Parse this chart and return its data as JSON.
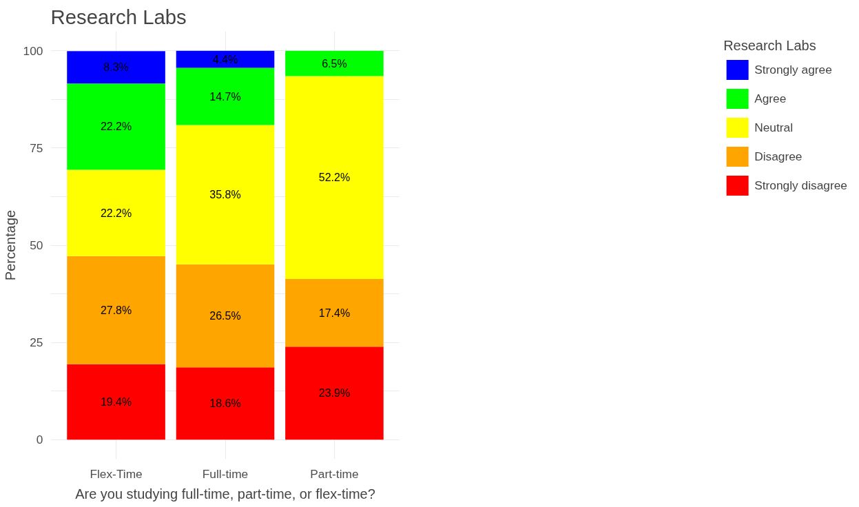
{
  "chart_data": {
    "type": "bar",
    "title": "Research Labs",
    "xlabel": "Are you studying full-time, part-time, or flex-time?",
    "ylabel": "Percentage",
    "legend_title": "Research Labs",
    "categories": [
      "Flex-Time",
      "Full-time",
      "Part-time"
    ],
    "stacked": true,
    "series": [
      {
        "name": "Strongly disagree",
        "color": "#ff0000",
        "values": [
          19.4,
          18.6,
          23.9
        ],
        "value_labels": [
          "19.4%",
          "18.6%",
          "23.9%"
        ]
      },
      {
        "name": "Disagree",
        "color": "#ffa500",
        "values": [
          27.8,
          26.5,
          17.4
        ],
        "value_labels": [
          "27.8%",
          "26.5%",
          "17.4%"
        ]
      },
      {
        "name": "Neutral",
        "color": "#ffff00",
        "values": [
          22.2,
          35.8,
          52.2
        ],
        "value_labels": [
          "22.2%",
          "35.8%",
          "52.2%"
        ]
      },
      {
        "name": "Agree",
        "color": "#00ff00",
        "values": [
          22.2,
          14.7,
          6.5
        ],
        "value_labels": [
          "22.2%",
          "14.7%",
          "6.5%"
        ]
      },
      {
        "name": "Strongly agree",
        "color": "#0000ff",
        "values": [
          8.3,
          4.4,
          null
        ],
        "value_labels": [
          "8.3%",
          "4.4%",
          null
        ]
      }
    ],
    "ylim": [
      -5,
      105
    ],
    "yticks": [
      0,
      {
        "value": 12.5,
        "label": null
      },
      25,
      {
        "value": 37.5,
        "label": null
      },
      50,
      {
        "value": 62.5,
        "label": null
      },
      75,
      {
        "value": 87.5,
        "label": null
      },
      100
    ],
    "grid": true,
    "legend": "right"
  }
}
